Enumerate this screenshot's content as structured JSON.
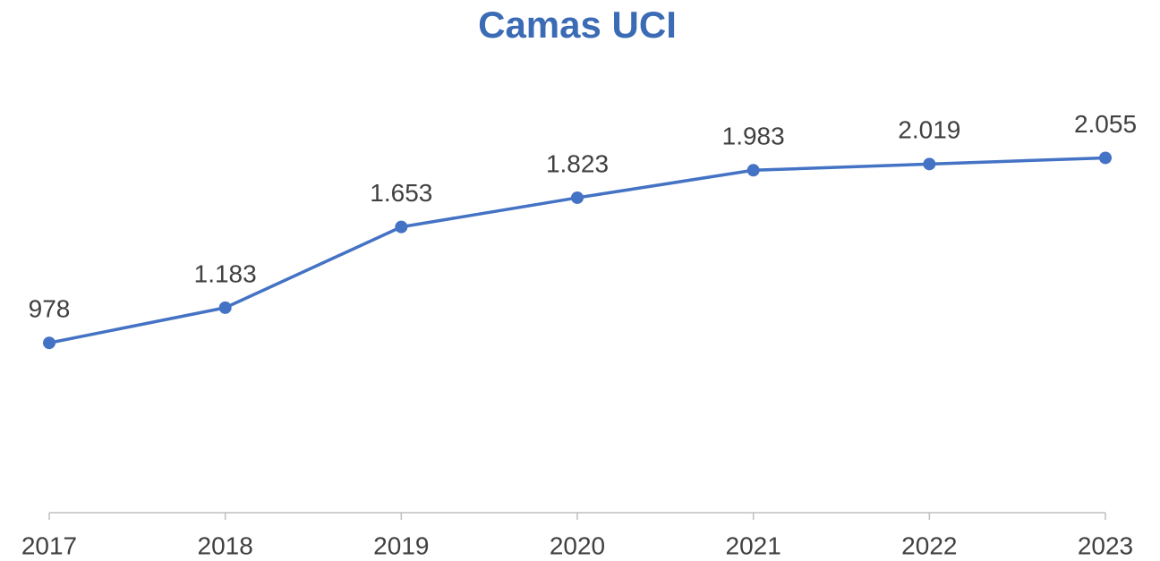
{
  "chart_data": {
    "type": "line",
    "title": "Camas UCI",
    "categories": [
      "2017",
      "2018",
      "2019",
      "2020",
      "2021",
      "2022",
      "2023"
    ],
    "series": [
      {
        "color": "#4472c4",
        "values": [
          978,
          1183,
          1653,
          1823,
          1983,
          2019,
          2055
        ],
        "value_labels": [
          "978",
          "1.183",
          "1.653",
          "1.823",
          "1.983",
          "2.019",
          "2.055"
        ]
      }
    ],
    "ylim": [
      0,
      2500
    ]
  }
}
